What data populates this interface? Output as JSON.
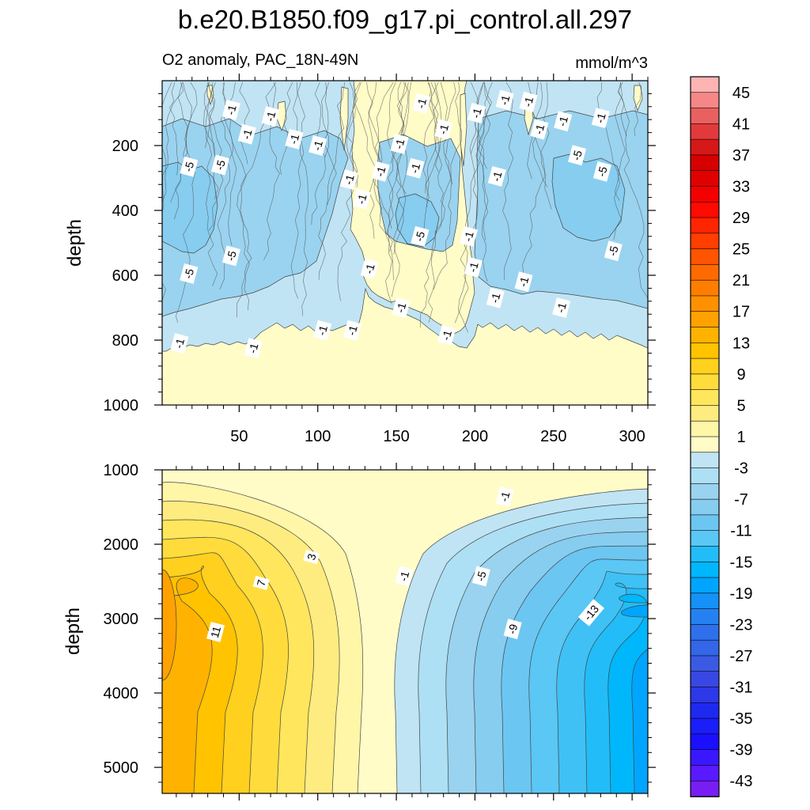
{
  "title": "b.e20.B1850.f09_g17.pi_control.all.297",
  "subtitle_left": "O2 anomaly, PAC_18N-49N",
  "subtitle_right": "mmol/m^3",
  "colors": {
    "yellow_1": "#fffcc8",
    "yellow_5": "#ffec80",
    "orange_11": "#ffb300",
    "blue_-1": "#c0e4f4",
    "blue_-5": "#9ad3ef",
    "blue_-9": "#6cc6f2",
    "blue_-13": "#22bdf8",
    "contour_line": "#444444"
  },
  "chart_data": [
    {
      "type": "contour",
      "panel": "upper",
      "variable": "O2 anomaly",
      "units": "mmol/m^3",
      "x_range": [
        1,
        310
      ],
      "x_ticks": [
        50,
        100,
        150,
        200,
        250,
        300
      ],
      "ylabel": "depth",
      "y_range": [
        0,
        1000
      ],
      "y_ticks": [
        200,
        400,
        600,
        800,
        1000
      ],
      "y_inverted": true,
      "contour_labels": [
        {
          "text": "-1",
          "x": 45,
          "depth": 90
        },
        {
          "text": "-1",
          "x": 70,
          "depth": 110
        },
        {
          "text": "-1",
          "x": 55,
          "depth": 165
        },
        {
          "text": "-1",
          "x": 85,
          "depth": 180
        },
        {
          "text": "-1",
          "x": 100,
          "depth": 200
        },
        {
          "text": "-5",
          "x": 18,
          "depth": 265
        },
        {
          "text": "-5",
          "x": 38,
          "depth": 260
        },
        {
          "text": "-1",
          "x": 120,
          "depth": 305
        },
        {
          "text": "-1",
          "x": 128,
          "depth": 365
        },
        {
          "text": "-1",
          "x": 140,
          "depth": 280
        },
        {
          "text": "-1",
          "x": 152,
          "depth": 195
        },
        {
          "text": "-1",
          "x": 166,
          "depth": 70
        },
        {
          "text": "-1",
          "x": 180,
          "depth": 150
        },
        {
          "text": "-1",
          "x": 162,
          "depth": 270
        },
        {
          "text": "-1",
          "x": 201,
          "depth": 100
        },
        {
          "text": "-1",
          "x": 219,
          "depth": 60
        },
        {
          "text": "-1",
          "x": 234,
          "depth": 65
        },
        {
          "text": "-1",
          "x": 241,
          "depth": 150
        },
        {
          "text": "-1",
          "x": 256,
          "depth": 125
        },
        {
          "text": "-1",
          "x": 280,
          "depth": 115
        },
        {
          "text": "-5",
          "x": 265,
          "depth": 230
        },
        {
          "text": "-5",
          "x": 281,
          "depth": 280
        },
        {
          "text": "-1",
          "x": 214,
          "depth": 295
        },
        {
          "text": "-5",
          "x": 165,
          "depth": 480
        },
        {
          "text": "-1",
          "x": 196,
          "depth": 480
        },
        {
          "text": "-1",
          "x": 199,
          "depth": 575
        },
        {
          "text": "-5",
          "x": 45,
          "depth": 540
        },
        {
          "text": "-5",
          "x": 18,
          "depth": 595
        },
        {
          "text": "-5",
          "x": 288,
          "depth": 525
        },
        {
          "text": "-1",
          "x": 133,
          "depth": 580
        },
        {
          "text": "-1",
          "x": 231,
          "depth": 620
        },
        {
          "text": "-1",
          "x": 213,
          "depth": 670
        },
        {
          "text": "-1",
          "x": 153,
          "depth": 700
        },
        {
          "text": "-1",
          "x": 255,
          "depth": 700
        },
        {
          "text": "-1",
          "x": 103,
          "depth": 770
        },
        {
          "text": "-1",
          "x": 122,
          "depth": 770
        },
        {
          "text": "-1",
          "x": 182,
          "depth": 785
        },
        {
          "text": "-1",
          "x": 12,
          "depth": 810
        },
        {
          "text": "-1",
          "x": 59,
          "depth": 825
        }
      ]
    },
    {
      "type": "contour",
      "panel": "lower",
      "variable": "O2 anomaly",
      "units": "mmol/m^3",
      "x_range": [
        1,
        310
      ],
      "ylabel": "depth",
      "y_range": [
        1000,
        5350
      ],
      "y_ticks": [
        1000,
        2000,
        3000,
        4000,
        5000
      ],
      "y_inverted": true,
      "contour_labels": [
        {
          "text": "3",
          "x": 96,
          "depth": 2170
        },
        {
          "text": "7",
          "x": 64,
          "depth": 2520
        },
        {
          "text": "11",
          "x": 35,
          "depth": 3180
        },
        {
          "text": "-1",
          "x": 155,
          "depth": 2430
        },
        {
          "text": "-1",
          "x": 219,
          "depth": 1360
        },
        {
          "text": "-5",
          "x": 204,
          "depth": 2430
        },
        {
          "text": "-9",
          "x": 224,
          "depth": 3140
        },
        {
          "text": "-13",
          "x": 274,
          "depth": 2920
        }
      ]
    },
    {
      "type": "colorbar",
      "labels": [
        "45",
        "41",
        "37",
        "33",
        "29",
        "25",
        "21",
        "17",
        "13",
        "9",
        "5",
        "1",
        "-3",
        "-7",
        "-11",
        "-15",
        "-19",
        "-23",
        "-27",
        "-31",
        "-35",
        "-39",
        "-43"
      ],
      "levels": [
        47,
        45,
        43,
        41,
        39,
        37,
        35,
        33,
        31,
        29,
        27,
        25,
        23,
        21,
        19,
        17,
        15,
        13,
        11,
        9,
        7,
        5,
        3,
        1,
        -1,
        -3,
        -5,
        -7,
        -9,
        -11,
        -13,
        -15,
        -17,
        -19,
        -21,
        -23,
        -25,
        -27,
        -29,
        -31,
        -33,
        -35,
        -37,
        -39,
        -41,
        -43,
        -45
      ],
      "colors": [
        "#ffb4b4",
        "#f78787",
        "#e96060",
        "#e23a3a",
        "#d61818",
        "#d60000",
        "#e00000",
        "#f40000",
        "#ff0a00",
        "#ff2500",
        "#ff3e00",
        "#ff5400",
        "#ff6a00",
        "#ff7e00",
        "#ff9100",
        "#ffa200",
        "#ffb300",
        "#ffc300",
        "#ffd01e",
        "#ffdc3c",
        "#ffe65c",
        "#ffec80",
        "#fff6a8",
        "#fffcc8",
        "#c0e4f4",
        "#ade0f4",
        "#9ad3ef",
        "#86cdf0",
        "#6cc6f2",
        "#5ac7f5",
        "#22bdf8",
        "#00b7fb",
        "#00a5ff",
        "#1591f7",
        "#2581f0",
        "#2e70ec",
        "#3366e8",
        "#3b5ae4",
        "#3a48e3",
        "#2d38e6",
        "#1e29f0",
        "#1a1ef8",
        "#1a10ff",
        "#3a18ff",
        "#5a1aff",
        "#781ef4"
      ]
    }
  ]
}
